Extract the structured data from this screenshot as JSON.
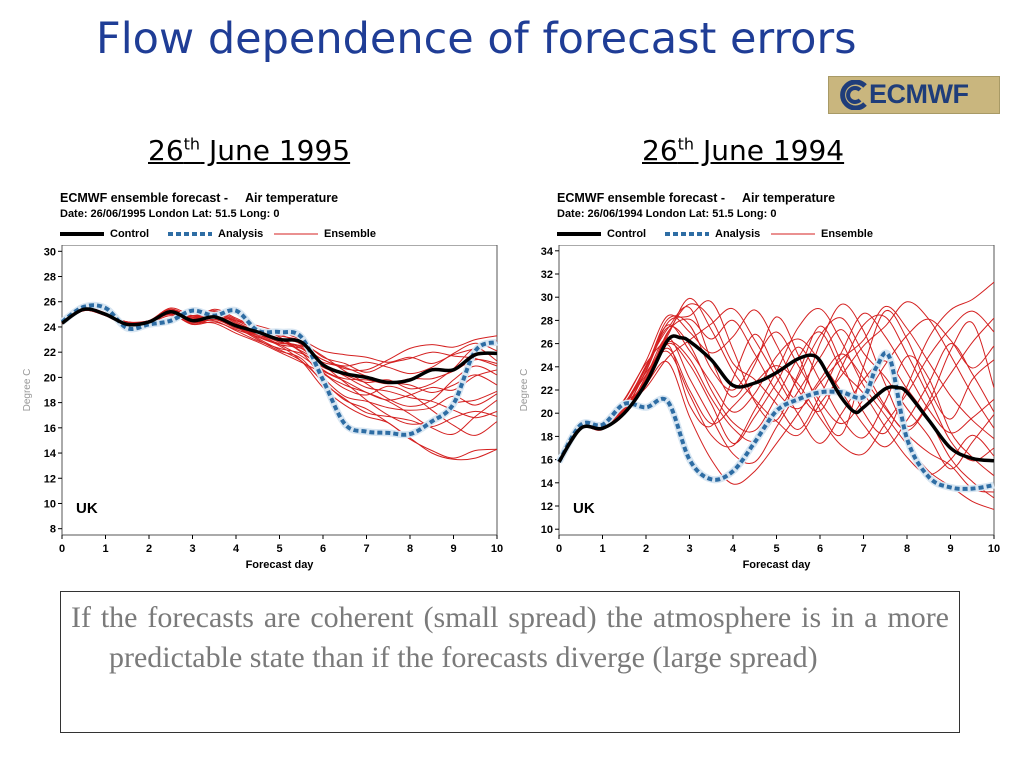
{
  "slide": {
    "title": "Flow dependence of forecast errors",
    "logo_text": "ECMWF",
    "note": "If the forecasts are coherent (small spread) the atmosphere is in a more predictable state than if the forecasts diverge (large spread)"
  },
  "headings": [
    {
      "base": "26",
      "sup": "th",
      "rest": " June 1995"
    },
    {
      "base": "26",
      "sup": "th",
      "rest": " June 1994"
    }
  ],
  "colors": {
    "control": "#000000",
    "analysis": "#2e6da4",
    "ensemble": "#d42020",
    "title": "#1f3d96"
  },
  "chart_data": [
    {
      "type": "line",
      "title": "ECMWF ensemble forecast -     Air temperature",
      "subtitle": "Date: 26/06/1995 London Lat: 51.5 Long: 0",
      "legend": [
        "Control",
        "Analysis",
        "Ensemble"
      ],
      "ylabel": "Degree C",
      "xlabel": "Forecast day",
      "region_label": "UK",
      "ylim": [
        7.5,
        30.5
      ],
      "yticks": [
        8,
        10,
        12,
        14,
        16,
        18,
        20,
        22,
        24,
        26,
        28,
        30
      ],
      "xlim": [
        0,
        10
      ],
      "xticks": [
        0,
        1,
        2,
        3,
        4,
        5,
        6,
        7,
        8,
        9,
        10
      ],
      "control": {
        "x": [
          0,
          0.5,
          1,
          1.5,
          2,
          2.5,
          3,
          3.5,
          4,
          4.5,
          5,
          5.5,
          6,
          6.5,
          7,
          7.5,
          8,
          8.5,
          9,
          9.5,
          10
        ],
        "y": [
          24.3,
          25.4,
          25.0,
          24.2,
          24.4,
          25.2,
          24.5,
          24.8,
          24.1,
          23.6,
          23.0,
          22.8,
          21.0,
          20.3,
          20.0,
          19.6,
          19.8,
          20.6,
          20.6,
          21.8,
          21.9
        ]
      },
      "analysis": {
        "x": [
          0,
          0.5,
          1,
          1.5,
          2,
          2.5,
          3,
          3.5,
          4,
          4.5,
          5,
          5.5,
          6,
          6.5,
          7,
          7.5,
          8,
          8.5,
          9,
          9.5,
          10
        ],
        "y": [
          24.4,
          25.6,
          25.5,
          23.9,
          24.2,
          24.5,
          25.3,
          24.9,
          25.3,
          23.7,
          23.6,
          23.2,
          19.8,
          16.3,
          15.7,
          15.6,
          15.5,
          16.5,
          17.9,
          22.1,
          22.8
        ]
      },
      "ensemble": {
        "x": [
          0,
          0.5,
          1,
          1.5,
          2,
          2.5,
          3,
          3.5,
          4,
          4.5,
          5,
          5.5,
          6,
          6.5,
          7,
          7.5,
          8,
          8.5,
          9,
          9.5,
          10
        ],
        "series": [
          [
            24.3,
            25.3,
            24.9,
            24.3,
            24.5,
            25.3,
            24.6,
            25.1,
            24.3,
            23.5,
            22.8,
            22.4,
            20.6,
            19.9,
            19.8,
            19.5,
            19.9,
            19.9,
            20.5,
            21.4,
            21.1
          ],
          [
            24.3,
            25.4,
            25.1,
            24.2,
            24.4,
            25.0,
            24.2,
            24.4,
            23.8,
            23.2,
            22.7,
            22.5,
            21.4,
            20.9,
            21.2,
            20.8,
            20.3,
            20.8,
            21.9,
            22.7,
            22.1
          ],
          [
            24.3,
            25.3,
            25.0,
            24.4,
            24.4,
            25.4,
            24.8,
            25.3,
            24.6,
            23.9,
            23.2,
            22.0,
            20.0,
            18.5,
            18.1,
            17.6,
            17.4,
            17.6,
            18.5,
            17.8,
            18.7
          ],
          [
            24.3,
            25.5,
            24.9,
            24.1,
            24.3,
            24.9,
            24.3,
            24.6,
            23.9,
            23.4,
            22.6,
            21.7,
            20.5,
            19.7,
            18.8,
            18.2,
            18.6,
            19.2,
            19.0,
            20.1,
            20.6
          ],
          [
            24.3,
            25.4,
            25.1,
            24.3,
            24.5,
            25.5,
            24.9,
            25.0,
            24.0,
            23.0,
            22.1,
            21.5,
            19.6,
            18.3,
            17.2,
            16.9,
            16.6,
            16.1,
            16.8,
            17.3,
            16.9
          ],
          [
            24.3,
            25.3,
            24.9,
            24.2,
            24.4,
            25.2,
            24.3,
            24.8,
            24.5,
            24.1,
            23.6,
            23.0,
            22.1,
            21.8,
            21.6,
            21.2,
            21.6,
            21.1,
            21.8,
            22.3,
            22.9
          ],
          [
            24.3,
            25.4,
            25.0,
            24.4,
            24.5,
            25.1,
            24.5,
            24.5,
            23.7,
            22.9,
            22.3,
            21.9,
            21.0,
            20.1,
            19.2,
            18.9,
            18.4,
            18.1,
            17.4,
            16.8,
            17.3
          ],
          [
            24.3,
            25.4,
            25.0,
            24.3,
            24.4,
            25.3,
            24.7,
            25.2,
            24.4,
            23.6,
            23.0,
            22.6,
            20.4,
            19.4,
            18.8,
            18.1,
            17.1,
            16.0,
            15.5,
            16.9,
            18.2
          ],
          [
            24.3,
            25.5,
            25.1,
            24.2,
            24.4,
            25.0,
            24.4,
            24.9,
            24.2,
            23.4,
            22.9,
            22.1,
            21.2,
            20.8,
            20.1,
            19.6,
            19.4,
            18.8,
            19.4,
            20.2,
            19.4
          ],
          [
            24.3,
            25.3,
            24.9,
            24.3,
            24.5,
            25.4,
            24.6,
            24.7,
            24.0,
            23.3,
            22.5,
            21.3,
            19.2,
            17.8,
            16.9,
            16.4,
            15.1,
            14.2,
            13.6,
            14.2,
            14.3
          ],
          [
            24.3,
            25.4,
            25.0,
            24.2,
            24.4,
            25.2,
            24.9,
            25.2,
            24.5,
            23.8,
            23.3,
            22.9,
            21.6,
            21.1,
            20.4,
            21.1,
            21.5,
            22.0,
            21.7,
            21.5,
            20.9
          ],
          [
            24.3,
            25.4,
            25.1,
            24.3,
            24.5,
            25.2,
            24.4,
            24.3,
            23.5,
            22.8,
            22.0,
            21.2,
            20.3,
            19.1,
            18.6,
            19.3,
            18.7,
            17.4,
            16.2,
            15.4,
            16.5
          ],
          [
            24.3,
            25.3,
            25.0,
            24.4,
            24.4,
            25.3,
            24.8,
            25.0,
            24.1,
            23.5,
            23.1,
            22.0,
            20.8,
            20.2,
            19.6,
            19.8,
            19.1,
            19.5,
            20.7,
            22.3,
            21.3
          ],
          [
            24.3,
            25.5,
            24.9,
            24.2,
            24.3,
            25.1,
            24.5,
            24.8,
            24.2,
            23.7,
            23.0,
            22.3,
            21.0,
            19.6,
            18.2,
            17.0,
            16.3,
            16.6,
            17.9,
            18.2,
            18.9
          ],
          [
            24.3,
            25.4,
            25.1,
            24.3,
            24.4,
            25.2,
            24.6,
            25.4,
            24.7,
            23.9,
            23.4,
            22.7,
            21.7,
            20.5,
            19.5,
            18.3,
            17.7,
            18.2,
            19.8,
            20.9,
            20.2
          ],
          [
            24.3,
            25.3,
            25.0,
            24.3,
            24.5,
            25.0,
            24.2,
            24.6,
            24.0,
            23.2,
            22.6,
            22.3,
            21.4,
            20.7,
            20.6,
            21.4,
            22.3,
            22.6,
            22.4,
            23.0,
            23.3
          ],
          [
            24.3,
            25.4,
            25.0,
            24.2,
            24.4,
            25.3,
            24.7,
            24.9,
            24.1,
            23.1,
            22.2,
            21.3,
            19.7,
            18.2,
            17.5,
            16.4,
            15.2,
            14.0,
            13.5,
            13.6,
            14.3
          ]
        ]
      }
    },
    {
      "type": "line",
      "title": "ECMWF ensemble forecast -     Air temperature",
      "subtitle": "Date: 26/06/1994 London Lat: 51.5 Long: 0",
      "legend": [
        "Control",
        "Analysis",
        "Ensemble"
      ],
      "ylabel": "Degree C",
      "xlabel": "Forecast day",
      "region_label": "UK",
      "ylim": [
        9.5,
        34.5
      ],
      "yticks": [
        10,
        12,
        14,
        16,
        18,
        20,
        22,
        24,
        26,
        28,
        30,
        32,
        34
      ],
      "xlim": [
        0,
        10
      ],
      "xticks": [
        0,
        1,
        2,
        3,
        4,
        5,
        6,
        7,
        8,
        9,
        10
      ],
      "control": {
        "x": [
          0,
          0.5,
          1,
          1.5,
          2,
          2.5,
          2.8,
          3,
          3.5,
          4,
          4.5,
          5,
          5.5,
          5.9,
          6.2,
          6.5,
          6.8,
          7,
          7.5,
          7.8,
          8,
          8.5,
          9,
          9.5,
          10
        ],
        "y": [
          15.8,
          18.7,
          18.7,
          20.0,
          22.6,
          26.3,
          26.5,
          26.2,
          24.6,
          22.4,
          22.6,
          23.5,
          24.7,
          24.9,
          23.2,
          21.3,
          20.1,
          20.5,
          22.1,
          22.2,
          21.8,
          19.4,
          17.0,
          16.1,
          15.9
        ]
      },
      "analysis": {
        "x": [
          0,
          0.5,
          1,
          1.5,
          2,
          2.5,
          3,
          3.5,
          4,
          4.5,
          5,
          5.5,
          6,
          6.5,
          7,
          7.3,
          7.6,
          8,
          8.5,
          9,
          9.5,
          10
        ],
        "y": [
          15.8,
          19.0,
          19.0,
          20.8,
          20.5,
          21.0,
          16.0,
          14.3,
          15.0,
          17.5,
          20.2,
          21.2,
          21.8,
          21.8,
          21.4,
          24.0,
          24.8,
          17.8,
          14.5,
          13.6,
          13.5,
          13.8
        ]
      },
      "ensemble": {
        "x": [
          0,
          0.5,
          1,
          1.5,
          2,
          2.5,
          3,
          3.5,
          4,
          4.5,
          5,
          5.5,
          6,
          6.5,
          7,
          7.5,
          8,
          8.5,
          9,
          9.5,
          10
        ],
        "series": [
          [
            15.8,
            18.7,
            18.8,
            20.6,
            24.1,
            27.3,
            29.1,
            24.6,
            21.4,
            24.2,
            28.3,
            25.0,
            20.3,
            18.2,
            24.0,
            28.8,
            26.4,
            22.1,
            19.5,
            22.9,
            24.6
          ],
          [
            15.8,
            18.7,
            18.6,
            20.9,
            22.4,
            25.9,
            20.7,
            18.9,
            23.0,
            26.8,
            23.7,
            21.3,
            26.0,
            29.4,
            27.1,
            22.5,
            18.9,
            21.0,
            25.4,
            27.8,
            22.2
          ],
          [
            15.8,
            18.7,
            18.9,
            20.2,
            23.7,
            27.8,
            28.4,
            29.6,
            25.5,
            21.0,
            19.4,
            23.4,
            27.5,
            24.3,
            20.1,
            18.3,
            22.3,
            26.5,
            28.9,
            29.8,
            31.3
          ],
          [
            15.8,
            18.7,
            18.7,
            20.4,
            22.9,
            26.0,
            24.2,
            20.8,
            17.4,
            19.7,
            22.6,
            25.7,
            22.8,
            19.5,
            17.9,
            21.0,
            24.9,
            23.0,
            18.4,
            16.2,
            14.6
          ],
          [
            15.8,
            18.7,
            18.8,
            21.1,
            24.5,
            28.4,
            27.0,
            25.2,
            26.6,
            28.9,
            25.9,
            22.0,
            20.2,
            24.0,
            27.6,
            28.3,
            25.1,
            21.4,
            17.6,
            15.9,
            17.0
          ],
          [
            15.8,
            18.7,
            18.7,
            19.9,
            23.2,
            26.5,
            23.0,
            19.6,
            16.5,
            15.8,
            18.8,
            21.9,
            24.8,
            27.2,
            23.9,
            20.6,
            18.5,
            20.7,
            23.4,
            26.1,
            28.2
          ],
          [
            15.8,
            18.7,
            18.9,
            20.5,
            22.2,
            24.8,
            26.3,
            27.7,
            29.0,
            26.3,
            23.1,
            19.9,
            17.4,
            20.0,
            22.9,
            24.5,
            22.1,
            19.5,
            16.1,
            14.1,
            12.7
          ],
          [
            15.8,
            18.7,
            18.8,
            20.8,
            24.0,
            27.6,
            25.4,
            22.6,
            20.1,
            21.7,
            24.9,
            26.4,
            24.5,
            21.8,
            19.0,
            17.1,
            19.4,
            22.6,
            26.0,
            23.4,
            20.1
          ],
          [
            15.8,
            18.7,
            18.6,
            20.3,
            23.0,
            26.9,
            29.4,
            28.1,
            24.3,
            22.9,
            20.8,
            18.6,
            21.5,
            25.3,
            28.6,
            26.6,
            23.5,
            20.3,
            18.3,
            19.6,
            21.2
          ],
          [
            15.8,
            18.7,
            18.8,
            20.6,
            23.5,
            25.3,
            21.6,
            18.1,
            17.2,
            20.3,
            23.6,
            27.4,
            29.0,
            26.1,
            22.4,
            19.8,
            17.3,
            15.0,
            13.7,
            12.4,
            11.7
          ],
          [
            15.8,
            18.7,
            18.7,
            20.1,
            22.7,
            27.0,
            28.1,
            26.4,
            28.0,
            25.1,
            21.9,
            20.4,
            22.6,
            24.7,
            26.3,
            29.2,
            27.3,
            24.4,
            21.5,
            19.4,
            17.8
          ],
          [
            15.8,
            18.7,
            18.9,
            21.2,
            24.3,
            26.2,
            24.7,
            21.3,
            18.7,
            17.6,
            19.9,
            23.1,
            26.7,
            28.2,
            25.2,
            23.1,
            20.4,
            18.0,
            15.2,
            17.5,
            19.9
          ],
          [
            15.8,
            18.7,
            18.7,
            20.0,
            22.8,
            25.6,
            22.0,
            19.1,
            20.6,
            22.6,
            24.1,
            22.5,
            19.6,
            17.2,
            16.5,
            19.1,
            21.7,
            24.9,
            27.3,
            28.8,
            27.0
          ],
          [
            15.8,
            18.7,
            18.8,
            20.7,
            23.9,
            28.1,
            27.6,
            23.8,
            22.0,
            24.6,
            27.0,
            24.1,
            21.0,
            19.1,
            21.2,
            24.2,
            26.7,
            28.1,
            26.3,
            23.9,
            25.8
          ],
          [
            15.8,
            18.7,
            18.6,
            20.4,
            22.5,
            24.4,
            19.7,
            16.0,
            13.9,
            15.0,
            17.4,
            20.0,
            22.9,
            25.1,
            23.0,
            20.4,
            18.2,
            16.6,
            15.5,
            13.5,
            13.2
          ],
          [
            15.8,
            18.7,
            18.8,
            20.9,
            23.3,
            26.7,
            29.9,
            27.2,
            23.6,
            21.2,
            19.3,
            18.1,
            20.8,
            23.3,
            25.8,
            27.5,
            29.6,
            28.1,
            25.0,
            21.6,
            18.7
          ],
          [
            15.8,
            18.7,
            18.7,
            20.3,
            23.6,
            27.4,
            25.9,
            22.0,
            19.2,
            18.5,
            21.4,
            24.8,
            27.0,
            23.7,
            21.7,
            18.8,
            16.2,
            14.7,
            16.0,
            18.1,
            16.3
          ]
        ]
      }
    }
  ]
}
